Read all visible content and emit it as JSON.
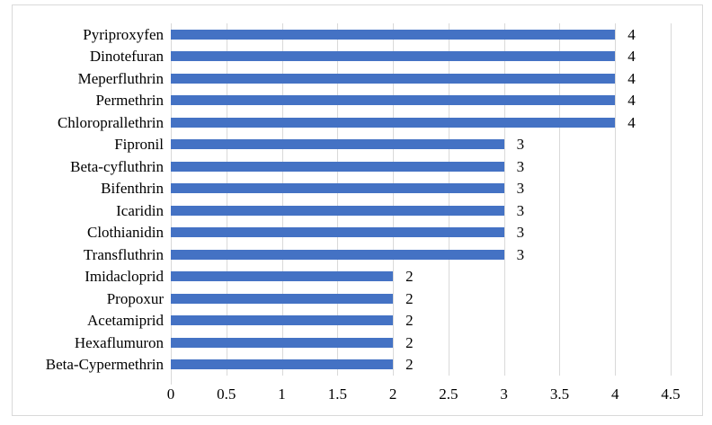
{
  "chart_data": {
    "type": "bar",
    "orientation": "horizontal",
    "title": "",
    "xlabel": "",
    "ylabel": "",
    "categories": [
      "Pyriproxyfen",
      "Dinotefuran",
      "Meperfluthrin",
      "Permethrin",
      "Chloroprallethrin",
      "Fipronil",
      "Beta-cyfluthrin",
      "Bifenthrin",
      "Icaridin",
      "Clothianidin",
      "Transfluthrin",
      "Imidacloprid",
      "Propoxur",
      "Acetamiprid",
      "Hexaflumuron",
      "Beta-Cypermethrin"
    ],
    "values": [
      4,
      4,
      4,
      4,
      4,
      3,
      3,
      3,
      3,
      3,
      3,
      2,
      2,
      2,
      2,
      2
    ],
    "data_labels_visible": true,
    "xlim": [
      0,
      4.5
    ],
    "xticks": [
      0,
      0.5,
      1,
      1.5,
      2,
      2.5,
      3,
      3.5,
      4,
      4.5
    ],
    "xtick_labels": [
      "0",
      "0.5",
      "1",
      "1.5",
      "2",
      "2.5",
      "3",
      "3.5",
      "4",
      "4.5"
    ],
    "grid": "vertical",
    "legend": "none",
    "colors": {
      "bar": "#4472C4",
      "gridline": "#D9D9D9",
      "frame_border": "#D9D9D9",
      "text": "#000000",
      "background": "#FFFFFF"
    }
  }
}
